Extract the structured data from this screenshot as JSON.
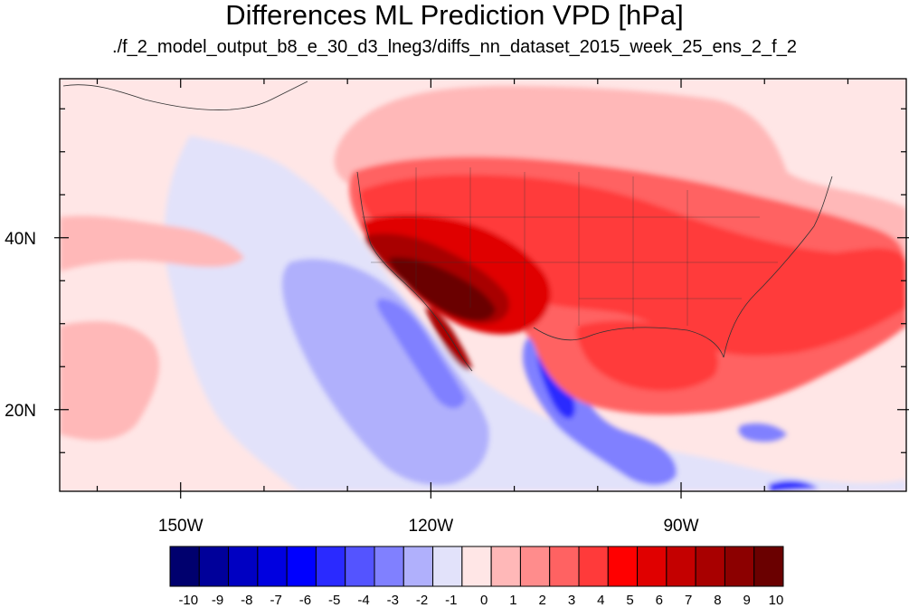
{
  "title": "Differences ML Prediction VPD [hPa]",
  "subtitle": "./f_2_model_output_b8_e_30_d3_lneg3/diffs_nn_dataset_2015_week_25_ens_2_f_2",
  "map": {
    "projection": "cylindrical equidistant",
    "lon_range": [
      -164.5,
      -63
    ],
    "lat_range": [
      10.5,
      58.5
    ],
    "lon_ticks": [
      {
        "value": -150,
        "label": "150W"
      },
      {
        "value": -120,
        "label": "120W"
      },
      {
        "value": -90,
        "label": "90W"
      }
    ],
    "lat_ticks": [
      {
        "value": 40,
        "label": "40N"
      },
      {
        "value": 20,
        "label": "20N"
      }
    ],
    "field": "VPD difference (hPa)"
  },
  "colorbar": {
    "labels": [
      "-10",
      "-9",
      "-8",
      "-7",
      "-6",
      "-5",
      "-4",
      "-3",
      "-2",
      "-1",
      "0",
      "1",
      "2",
      "3",
      "4",
      "5",
      "6",
      "7",
      "8",
      "9",
      "10"
    ],
    "colors": [
      "#00006e",
      "#00009a",
      "#0000c2",
      "#0000e0",
      "#0000ff",
      "#2a2aff",
      "#5454ff",
      "#8080ff",
      "#b0b0fc",
      "#e2e2fa",
      "#ffe6e6",
      "#ffb8b8",
      "#ff8c8c",
      "#ff6262",
      "#ff3a3a",
      "#ff0000",
      "#e00000",
      "#c40000",
      "#a80000",
      "#8c0000",
      "#6a0000"
    ]
  }
}
